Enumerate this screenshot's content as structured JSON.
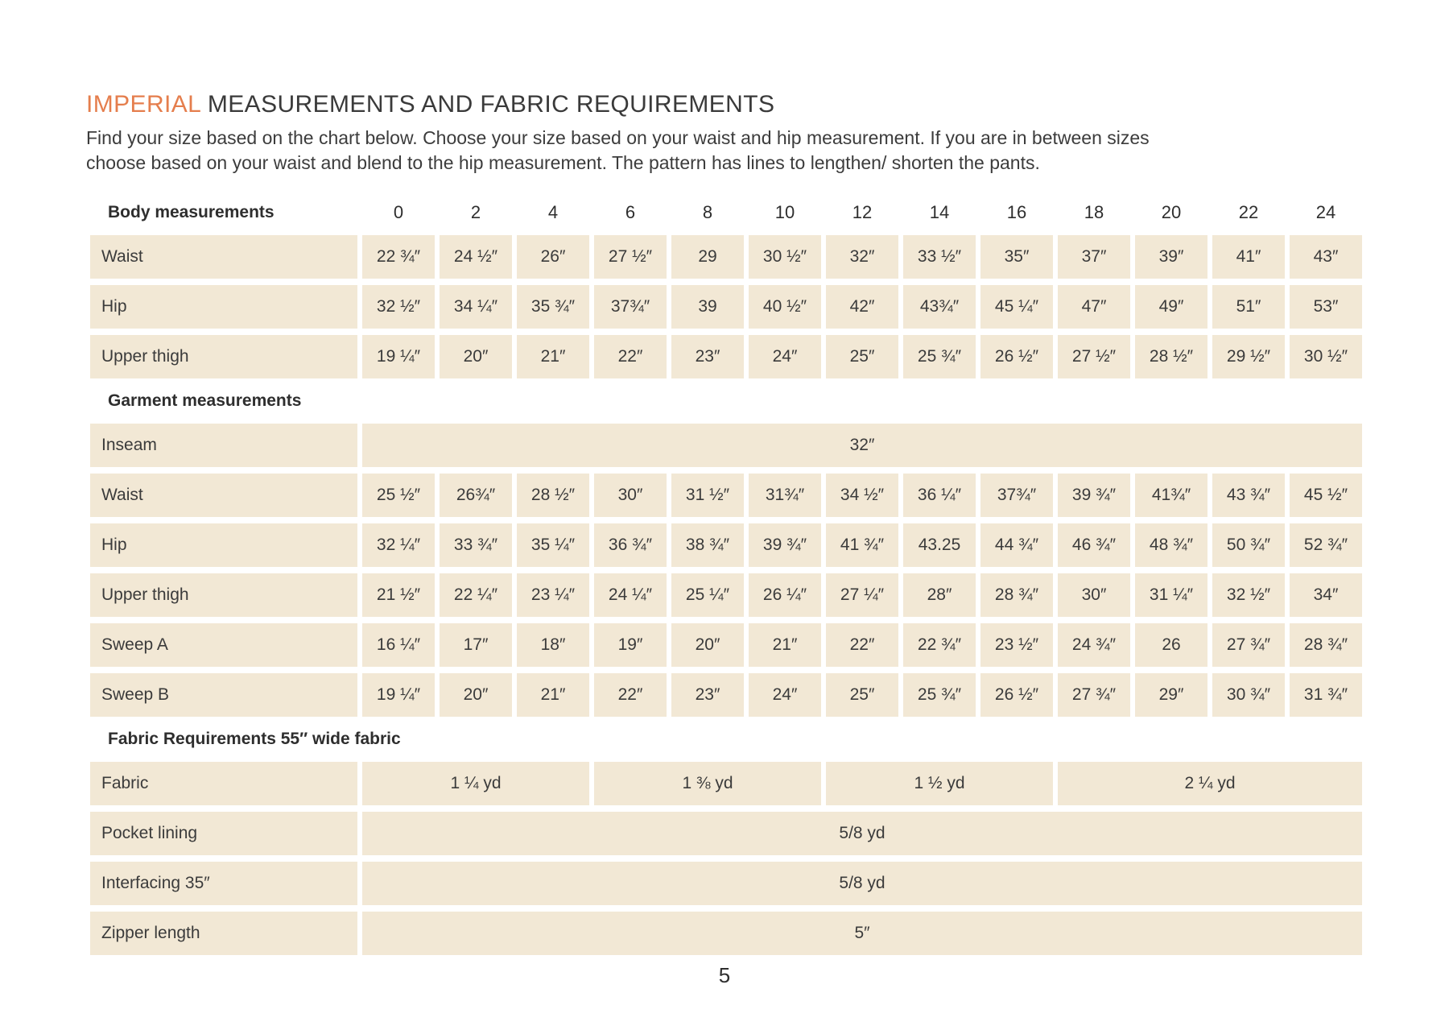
{
  "page": {
    "title_highlight": "IMPERIAL",
    "title_rest": " MEASUREMENTS AND FABRIC REQUIREMENTS",
    "intro_lines": [
      "Find your size based on the chart below. Choose your size based on your waist and hip measurement. If you are in between sizes",
      "choose based on your waist and blend to the hip measurement. The pattern has lines to lengthen/ shorten the pants."
    ],
    "page_number": "5"
  },
  "colors": {
    "accent_orange": "#e57e4d",
    "cell_beige": "#f2e8d5",
    "text_dark": "#3b3b3b"
  },
  "table": {
    "size_headers": [
      "0",
      "2",
      "4",
      "6",
      "8",
      "10",
      "12",
      "14",
      "16",
      "18",
      "20",
      "22",
      "24"
    ],
    "sections": [
      {
        "label": "Body measurements",
        "show_size_headers": true,
        "rows": [
          {
            "label": "Waist",
            "cells": [
              "22 ¾″",
              "24 ½″",
              "26″",
              "27 ½″",
              "29",
              "30 ½″",
              "32″",
              "33 ½″",
              "35″",
              "37″",
              "39″",
              "41″",
              "43″"
            ]
          },
          {
            "label": "Hip",
            "cells": [
              "32 ½″",
              "34 ¼″",
              "35 ¾″",
              "37¾″",
              "39",
              "40 ½″",
              "42″",
              "43¾″",
              "45 ¼″",
              "47″",
              "49″",
              "51″",
              "53″"
            ]
          },
          {
            "label": "Upper thigh",
            "cells": [
              "19 ¼″",
              "20″",
              "21″",
              "22″",
              "23″",
              "24″",
              "25″",
              "25 ¾″",
              "26 ½″",
              "27 ½″",
              "28 ½″",
              "29 ½″",
              "30 ½″"
            ]
          }
        ]
      },
      {
        "label": "Garment measurements",
        "show_size_headers": false,
        "rows": [
          {
            "label": "Inseam",
            "merged": "32″"
          },
          {
            "label": "Waist",
            "cells": [
              "25 ½″",
              "26¾″",
              "28 ½″",
              "30″",
              "31 ½″",
              "31¾″",
              "34 ½″",
              "36 ¼″",
              "37¾″",
              "39 ¾″",
              "41¾″",
              "43 ¾″",
              "45 ½″"
            ]
          },
          {
            "label": "Hip",
            "cells": [
              "32 ¼″",
              "33 ¾″",
              "35 ¼″",
              "36 ¾″",
              "38 ¾″",
              "39 ¾″",
              "41 ¾″",
              "43.25",
              "44 ¾″",
              "46 ¾″",
              "48 ¾″",
              "50 ¾″",
              "52 ¾″"
            ]
          },
          {
            "label": "Upper thigh",
            "cells": [
              "21 ½″",
              "22 ¼″",
              "23 ¼″",
              "24 ¼″",
              "25 ¼″",
              "26 ¼″",
              "27 ¼″",
              "28″",
              "28 ¾″",
              "30″",
              "31 ¼″",
              "32 ½″",
              "34″"
            ]
          },
          {
            "label": "Sweep A",
            "cells": [
              "16 ¼″",
              "17″",
              "18″",
              "19″",
              "20″",
              "21″",
              "22″",
              "22 ¾″",
              "23 ½″",
              "24 ¾″",
              "26",
              "27 ¾″",
              "28 ¾″"
            ]
          },
          {
            "label": "Sweep B",
            "cells": [
              "19 ¼″",
              "20″",
              "21″",
              "22″",
              "23″",
              "24″",
              "25″",
              "25 ¾″",
              "26 ½″",
              "27 ¾″",
              "29″",
              "30 ¾″",
              "31 ¾″"
            ]
          }
        ]
      },
      {
        "label": "Fabric Requirements 55″ wide fabric",
        "show_size_headers": false,
        "rows": [
          {
            "label": "Fabric",
            "groups": [
              {
                "value": "1 ¼ yd",
                "span": 3
              },
              {
                "value": "1 ⅜ yd",
                "span": 3
              },
              {
                "value": "1 ½ yd",
                "span": 3
              },
              {
                "value": "2 ¼ yd",
                "span": 4
              }
            ]
          },
          {
            "label": "Pocket lining",
            "merged": "5/8 yd"
          },
          {
            "label": "Interfacing 35″",
            "merged": "5/8 yd"
          },
          {
            "label": "Zipper length",
            "merged": "5″"
          }
        ]
      }
    ]
  }
}
